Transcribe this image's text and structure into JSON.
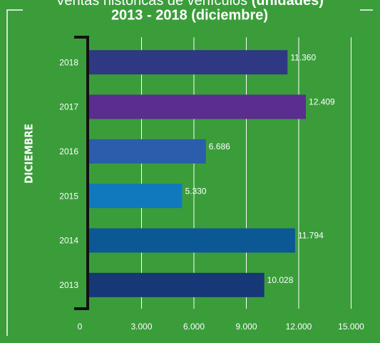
{
  "chart_data": {
    "type": "barh",
    "title": "Ventas históricas de vehículos",
    "title_unit": "(unidades)",
    "subtitle": "2013 - 2018 (diciembre)",
    "ylabel": "DICIEMBRE",
    "categories": [
      "2018",
      "2017",
      "2016",
      "2015",
      "2014",
      "2013"
    ],
    "values": [
      11360,
      12409,
      6686,
      5330,
      11794,
      10028
    ],
    "value_labels": [
      "11.360",
      "12.409",
      "6.686",
      "5.330",
      "11.794",
      "10.028"
    ],
    "colors": [
      "#2e3883",
      "#5a2d8f",
      "#2a5dab",
      "#1079be",
      "#0b5894",
      "#163877"
    ],
    "xlim": [
      0,
      15000
    ],
    "xticks": [
      0,
      {
        "value": 3000,
        "label": "3.000"
      },
      {
        "value": 6000,
        "label": "6.000"
      },
      {
        "value": 9000,
        "label": "9.000"
      },
      {
        "value": 12000,
        "label": "12.000"
      },
      {
        "value": 15000,
        "label": "15.000"
      }
    ],
    "grid": true
  }
}
